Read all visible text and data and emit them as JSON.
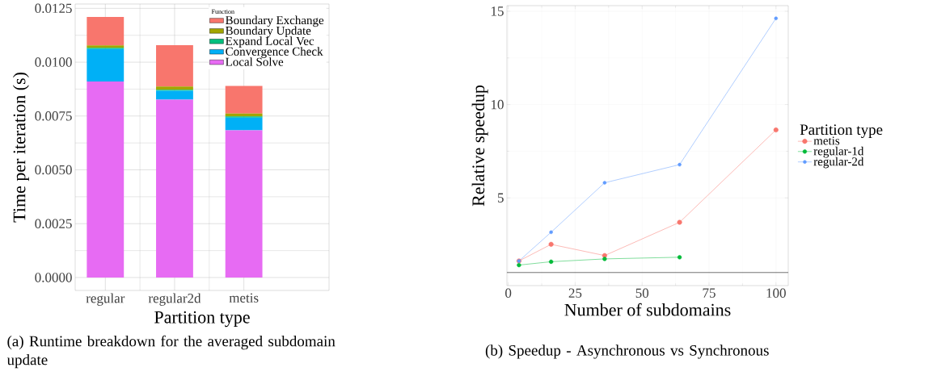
{
  "chart_data": [
    {
      "type": "bar",
      "stacked": true,
      "categories": [
        "regular",
        "regular2d",
        "metis"
      ],
      "series": [
        {
          "name": "Local Solve",
          "color": "#e76bf3",
          "values": [
            0.0091,
            0.00826,
            0.00684
          ]
        },
        {
          "name": "Convergence Check",
          "color": "#00b0f6",
          "values": [
            0.00151,
            0.00041,
            0.00059
          ]
        },
        {
          "name": "Expand Local Vec",
          "color": "#00bf7d",
          "values": [
            6e-05,
            5e-05,
            5e-05
          ]
        },
        {
          "name": "Boundary Update",
          "color": "#a3a500",
          "values": [
            0.00011,
            0.00015,
            0.00013
          ]
        },
        {
          "name": "Boundary Exchange",
          "color": "#f8766d",
          "values": [
            0.00132,
            0.00192,
            0.00129
          ]
        }
      ],
      "ylim": [
        -0.0006,
        0.0127
      ],
      "yticks": [
        {
          "value": 0,
          "label": "0.0000"
        },
        {
          "value": 0.0025,
          "label": "0.0025"
        },
        {
          "value": 0.005,
          "label": "0.0050"
        },
        {
          "value": 0.0075,
          "label": "0.0075"
        },
        {
          "value": 0.01,
          "label": "0.0100"
        },
        {
          "value": 0.0125,
          "label": "0.0125"
        }
      ],
      "xlabel": "Partition type",
      "ylabel": "Time per iteration (s)",
      "legend_title": "Function",
      "legend": "top right",
      "grid": true,
      "annotations": [
        "(a) Runtime breakdown for the averaged subdomain update"
      ]
    },
    {
      "type": "line",
      "x": [
        4,
        16,
        36,
        64,
        100
      ],
      "series": [
        {
          "name": "metis",
          "color": "#f8766d",
          "values": [
            1.62,
            2.51,
            1.91,
            3.69,
            8.64
          ]
        },
        {
          "name": "regular-1d",
          "color": "#00ba38",
          "values": [
            1.4,
            1.58,
            1.73,
            1.82,
            null
          ]
        },
        {
          "name": "regular-2d",
          "color": "#619cff",
          "values": [
            1.62,
            3.16,
            5.81,
            6.78,
            14.62
          ]
        }
      ],
      "xlim": [
        -0.5,
        104.6
      ],
      "ylim": [
        0.3,
        15.3
      ],
      "xticks": [
        0,
        25,
        50,
        75,
        100
      ],
      "yticks": [
        5,
        10,
        15
      ],
      "xlabel": "Number of subdomains",
      "ylabel": "Relative speedup",
      "legend_title": "Partition type",
      "legend": "right",
      "marker": "circle",
      "grid": true,
      "ref_lines": [
        {
          "axis": "y",
          "value": 1,
          "color": "#4d4d4d"
        }
      ],
      "annotations": [
        "(b) Speedup - Asynchronous vs Synchronous"
      ]
    }
  ]
}
